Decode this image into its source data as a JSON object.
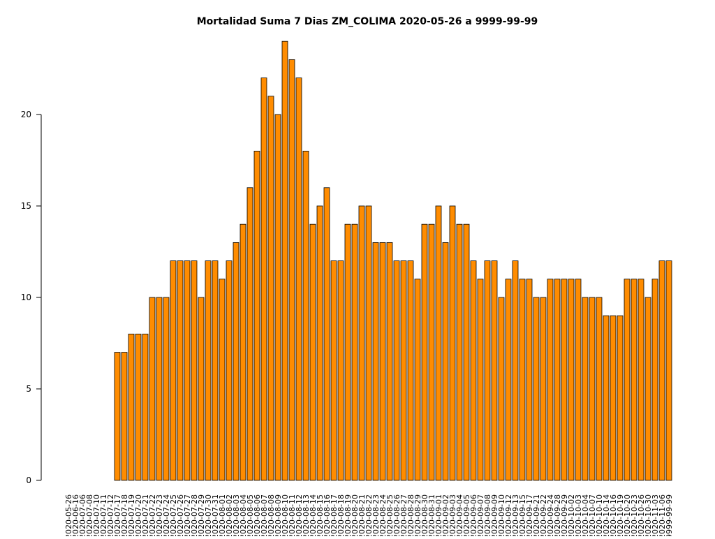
{
  "chart_data": {
    "type": "bar",
    "title": "Mortalidad Suma 7 Dias ZM_COLIMA 2020-05-26 a 9999-99-99",
    "categories": [
      "2020-05-26",
      "2020-06-16",
      "2020-07-06",
      "2020-07-08",
      "2020-07-10",
      "2020-07-11",
      "2020-07-12",
      "2020-07-17",
      "2020-07-18",
      "2020-07-19",
      "2020-07-20",
      "2020-07-21",
      "2020-07-22",
      "2020-07-23",
      "2020-07-24",
      "2020-07-25",
      "2020-07-26",
      "2020-07-27",
      "2020-07-28",
      "2020-07-29",
      "2020-07-30",
      "2020-07-31",
      "2020-08-01",
      "2020-08-02",
      "2020-08-03",
      "2020-08-04",
      "2020-08-05",
      "2020-08-06",
      "2020-08-07",
      "2020-08-08",
      "2020-08-09",
      "2020-08-10",
      "2020-08-11",
      "2020-08-12",
      "2020-08-13",
      "2020-08-14",
      "2020-08-15",
      "2020-08-16",
      "2020-08-17",
      "2020-08-18",
      "2020-08-19",
      "2020-08-20",
      "2020-08-21",
      "2020-08-22",
      "2020-08-23",
      "2020-08-24",
      "2020-08-25",
      "2020-08-26",
      "2020-08-27",
      "2020-08-28",
      "2020-08-29",
      "2020-08-30",
      "2020-08-31",
      "2020-09-01",
      "2020-09-02",
      "2020-09-03",
      "2020-09-04",
      "2020-09-05",
      "2020-09-06",
      "2020-09-07",
      "2020-09-08",
      "2020-09-09",
      "2020-09-10",
      "2020-09-12",
      "2020-09-13",
      "2020-09-15",
      "2020-09-17",
      "2020-09-21",
      "2020-09-22",
      "2020-09-24",
      "2020-09-28",
      "2020-09-29",
      "2020-10-02",
      "2020-10-03",
      "2020-10-04",
      "2020-10-07",
      "2020-10-10",
      "2020-10-14",
      "2020-10-16",
      "2020-10-19",
      "2020-10-20",
      "2020-10-23",
      "2020-10-26",
      "2020-10-30",
      "2020-11-03",
      "2020-11-06",
      "9999-99-99"
    ],
    "values": [
      0,
      0,
      0,
      0,
      0,
      0,
      0,
      7,
      7,
      8,
      8,
      8,
      10,
      10,
      10,
      12,
      12,
      12,
      12,
      10,
      12,
      12,
      11,
      12,
      13,
      14,
      16,
      18,
      22,
      21,
      20,
      24,
      23,
      22,
      18,
      14,
      15,
      16,
      12,
      12,
      14,
      14,
      15,
      15,
      13,
      13,
      13,
      12,
      12,
      12,
      11,
      14,
      14,
      15,
      13,
      15,
      14,
      14,
      12,
      11,
      12,
      12,
      10,
      11,
      12,
      11,
      11,
      10,
      10,
      11,
      11,
      11,
      11,
      11,
      10,
      10,
      10,
      9,
      9,
      9,
      11,
      11,
      11,
      10,
      11,
      12,
      12
    ],
    "color": "#ff8c00",
    "ylim": [
      0,
      24.4
    ],
    "yticks": [
      0,
      5,
      10,
      15,
      20
    ]
  }
}
